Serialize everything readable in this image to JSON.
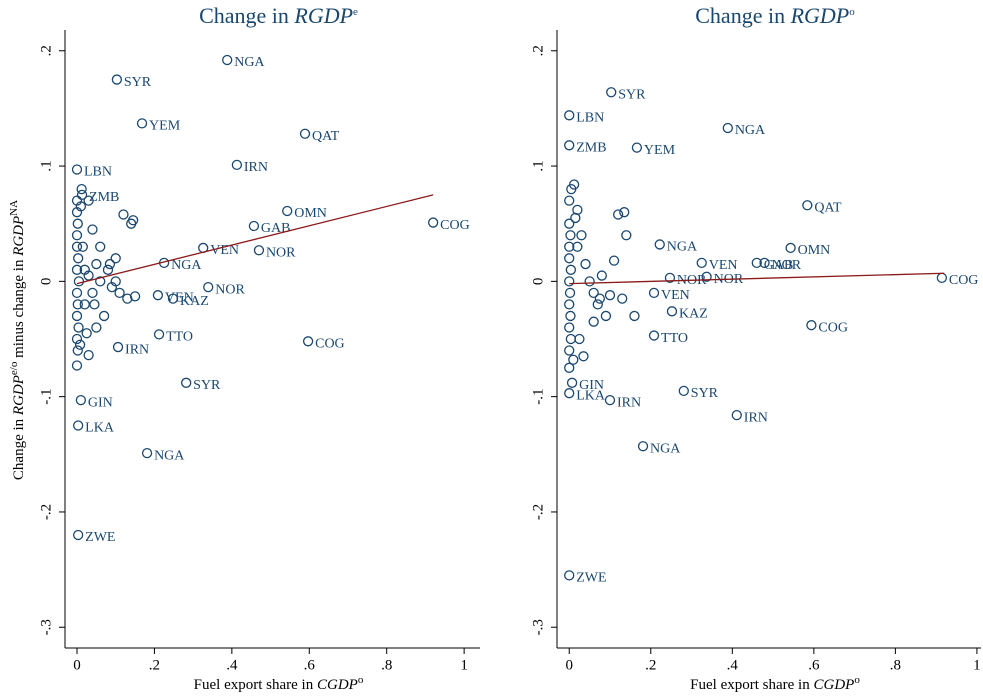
{
  "chart_data": [
    {
      "type": "scatter",
      "title": [
        "Change in ",
        "RGDP",
        "e"
      ],
      "x_label": [
        "Fuel export share in ",
        "CGDP",
        "o"
      ],
      "y_label": [
        "Change in ",
        "RGDP",
        "e/o",
        " minus change in ",
        "RGDP",
        "NA"
      ],
      "xlim": [
        -0.031,
        1.041
      ],
      "ylim": [
        -0.318,
        0.218
      ],
      "xticks": [
        0,
        {
          "value": 0.2,
          "label": ".2"
        },
        {
          "value": 0.4,
          "label": ".4"
        },
        {
          "value": 0.6,
          "label": ".6"
        },
        {
          "value": 0.8,
          "label": ".8"
        },
        1
      ],
      "yticks": [
        {
          "value": -0.3,
          "label": "-.3"
        },
        {
          "value": -0.2,
          "label": "-.2"
        },
        {
          "value": -0.1,
          "label": "-.1"
        },
        0,
        {
          "value": 0.1,
          "label": ".1"
        },
        {
          "value": 0.2,
          "label": ".2"
        }
      ],
      "series": [
        {
          "color": "#1a476f",
          "x": [
            0.388,
            0.103,
            0.168,
            0.589,
            0.413,
            0.0,
            0.013,
            0.543,
            0.457,
            0.92,
            0.326,
            0.47,
            0.225,
            0.339,
            0.209,
            0.248,
            0.212,
            0.597,
            0.106,
            0.282,
            0.01,
            0.003,
            0.181,
            0.003,
            0.0,
            0.0,
            0.002,
            0.0,
            0.0,
            0.003,
            0.0,
            0.005,
            0.0,
            0.002,
            0.0,
            0.004,
            0.0,
            0.002,
            0.0,
            0.01,
            0.015,
            0.02,
            0.02,
            0.03,
            0.03,
            0.04,
            0.04,
            0.05,
            0.05,
            0.06,
            0.07,
            0.08,
            0.09,
            0.1,
            0.12,
            0.14,
            0.13,
            0.15,
            0.03,
            0.012,
            0.06,
            0.1,
            0.025,
            0.008,
            0.145,
            0.11,
            0.085,
            0.045
          ],
          "values": [
            0.192,
            0.175,
            0.137,
            0.128,
            0.101,
            0.097,
            0.075,
            0.061,
            0.048,
            0.051,
            0.029,
            0.027,
            0.016,
            -0.005,
            -0.012,
            -0.015,
            -0.046,
            -0.052,
            -0.057,
            -0.088,
            -0.103,
            -0.125,
            -0.149,
            -0.22,
            0.07,
            0.06,
            0.05,
            0.04,
            0.03,
            0.02,
            0.01,
            0.0,
            -0.01,
            -0.02,
            -0.03,
            -0.04,
            -0.05,
            -0.06,
            -0.073,
            0.065,
            0.03,
            0.01,
            -0.02,
            0.005,
            0.07,
            -0.01,
            0.045,
            0.015,
            -0.04,
            0.0,
            -0.03,
            0.01,
            -0.005,
            0.02,
            0.058,
            0.05,
            -0.015,
            -0.013,
            -0.064,
            0.08,
            0.03,
            0.0,
            -0.045,
            -0.055,
            0.053,
            -0.01,
            0.015,
            -0.02
          ],
          "point_labels": [
            "NGA",
            "SYR",
            "YEM",
            "QAT",
            "IRN",
            "LBN",
            "ZMB",
            "OMN",
            "GAB",
            "COG",
            "VEN",
            "NOR",
            "NGA",
            "NOR",
            "VEN",
            "KAZ",
            "TTO",
            "COG",
            "IRN",
            "SYR",
            "GIN",
            "LKA",
            "NGA",
            "ZWE",
            null,
            null,
            null,
            null,
            null,
            null,
            null,
            null,
            null,
            null,
            null,
            null,
            null,
            null,
            null,
            null,
            null,
            null,
            null,
            null,
            null,
            null,
            null,
            null,
            null,
            null,
            null,
            null,
            null,
            null,
            null,
            null,
            null,
            null,
            null,
            null,
            null,
            null,
            null,
            null,
            null,
            null,
            null,
            null
          ]
        }
      ],
      "fit_line": {
        "x": [
          0,
          0.92
        ],
        "values": [
          -0.002,
          0.075
        ],
        "color": "#8b1a1a"
      }
    },
    {
      "type": "scatter",
      "title": [
        "Change in ",
        "RGDP",
        "o"
      ],
      "x_label": [
        "Fuel export share in ",
        "CGDP",
        "o"
      ],
      "xlim": [
        -0.03,
        1.01
      ],
      "ylim": [
        -0.318,
        0.218
      ],
      "xticks": [
        0,
        {
          "value": 0.2,
          "label": ".2"
        },
        {
          "value": 0.4,
          "label": ".4"
        },
        {
          "value": 0.6,
          "label": ".6"
        },
        {
          "value": 0.8,
          "label": ".8"
        },
        1
      ],
      "yticks": [
        {
          "value": -0.3,
          "label": "-.3"
        },
        {
          "value": -0.2,
          "label": "-.2"
        },
        {
          "value": -0.1,
          "label": "-.1"
        },
        0,
        {
          "value": 0.1,
          "label": ".1"
        },
        {
          "value": 0.2,
          "label": ".2"
        }
      ],
      "series": [
        {
          "color": "#1a476f",
          "x": [
            0.103,
            0.0,
            0.0,
            0.166,
            0.389,
            0.584,
            0.222,
            0.543,
            0.325,
            0.46,
            0.479,
            0.247,
            0.337,
            0.914,
            0.208,
            0.252,
            0.594,
            0.208,
            0.007,
            0.0,
            0.1,
            0.281,
            0.411,
            0.181,
            0.0,
            0.0,
            0.005,
            0.012,
            0.02,
            0.0,
            0.003,
            0.0,
            0.0,
            0.004,
            0.0,
            0.002,
            0.0,
            0.003,
            0.0,
            0.004,
            0.0,
            0.0,
            0.01,
            0.02,
            0.03,
            0.04,
            0.05,
            0.06,
            0.07,
            0.08,
            0.1,
            0.12,
            0.135,
            0.14,
            0.09,
            0.06,
            0.16,
            0.13,
            0.025,
            0.035,
            0.015,
            0.11,
            0.075
          ],
          "values": [
            0.164,
            0.144,
            0.118,
            0.116,
            0.133,
            0.066,
            0.032,
            0.029,
            0.016,
            0.016,
            0.016,
            0.003,
            0.004,
            0.003,
            -0.01,
            -0.026,
            -0.038,
            -0.047,
            -0.088,
            -0.097,
            -0.103,
            -0.095,
            -0.116,
            -0.143,
            -0.255,
            0.07,
            0.08,
            0.084,
            0.062,
            0.05,
            0.04,
            0.03,
            0.02,
            0.01,
            0.0,
            -0.01,
            -0.02,
            -0.03,
            -0.04,
            -0.05,
            -0.06,
            -0.075,
            -0.068,
            0.03,
            0.04,
            0.015,
            0.0,
            -0.01,
            -0.02,
            0.005,
            -0.012,
            0.058,
            0.06,
            0.04,
            -0.03,
            -0.035,
            -0.03,
            -0.015,
            -0.05,
            -0.065,
            0.055,
            0.018,
            -0.015
          ],
          "point_labels": [
            "SYR",
            "LBN",
            "ZMB",
            "YEM",
            "NGA",
            "QAT",
            "NGA",
            "OMN",
            "VEN",
            "GAB",
            "NOR",
            "NOR",
            "NOR",
            "COG",
            "VEN",
            "KAZ",
            "COG",
            "TTO",
            "GIN",
            "LKA",
            "IRN",
            "SYR",
            "IRN",
            "NGA",
            "ZWE",
            null,
            null,
            null,
            null,
            null,
            null,
            null,
            null,
            null,
            null,
            null,
            null,
            null,
            null,
            null,
            null,
            null,
            null,
            null,
            null,
            null,
            null,
            null,
            null,
            null,
            null,
            null,
            null,
            null,
            null,
            null,
            null,
            null,
            null,
            null,
            null,
            null,
            null
          ]
        }
      ],
      "fit_line": {
        "x": [
          0,
          0.92
        ],
        "values": [
          -0.002,
          0.007
        ],
        "color": "#8b1a1a"
      }
    }
  ]
}
